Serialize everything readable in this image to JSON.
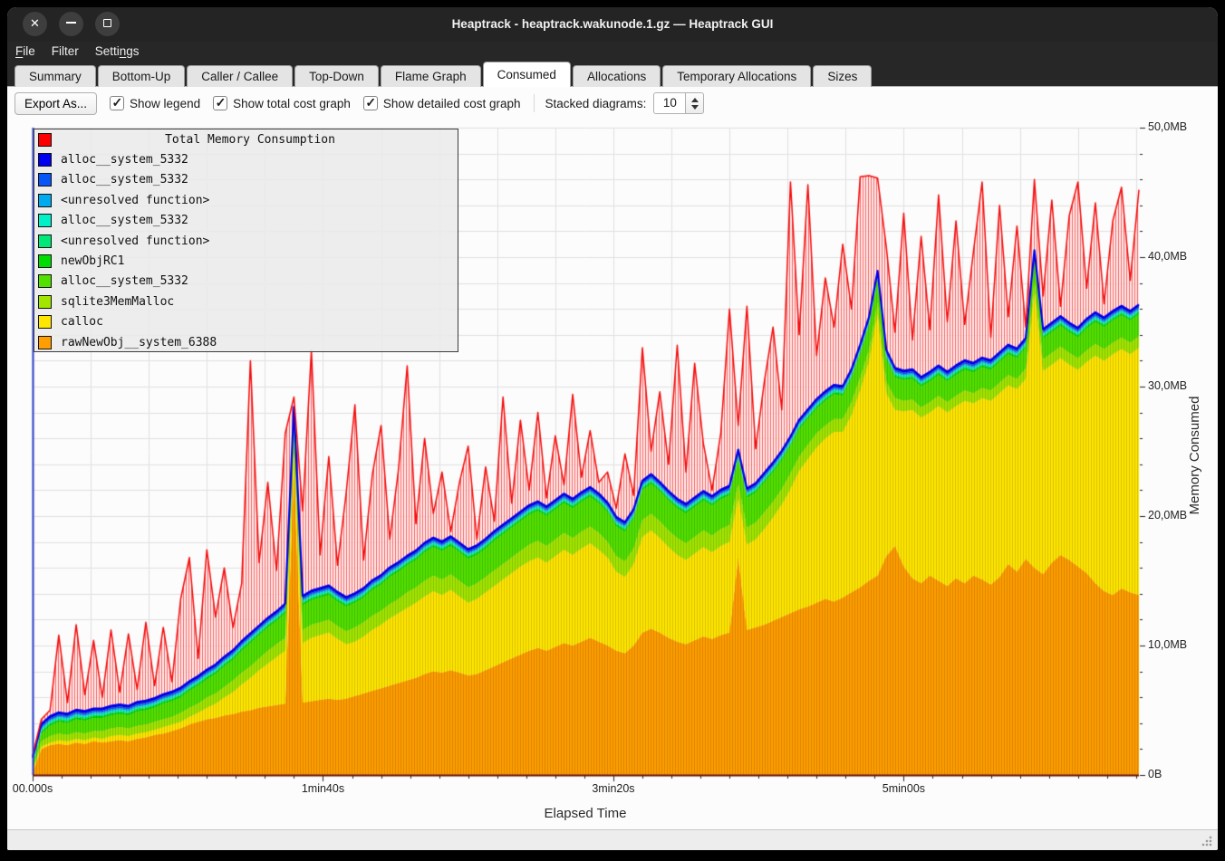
{
  "window": {
    "title": "Heaptrack - heaptrack.wakunode.1.gz — Heaptrack GUI"
  },
  "menu": {
    "items": [
      {
        "label": "File",
        "accel": 0
      },
      {
        "label": "Filter",
        "accel": -1
      },
      {
        "label": "Settings",
        "accel": 5
      }
    ]
  },
  "tabs": {
    "active": "Consumed",
    "items": [
      {
        "label": "Summary"
      },
      {
        "label": "Bottom-Up"
      },
      {
        "label": "Caller / Callee"
      },
      {
        "label": "Top-Down"
      },
      {
        "label": "Flame Graph"
      },
      {
        "label": "Consumed"
      },
      {
        "label": "Allocations"
      },
      {
        "label": "Temporary Allocations"
      },
      {
        "label": "Sizes"
      }
    ]
  },
  "toolbar": {
    "export_label": "Export As...",
    "checkboxes": [
      {
        "label": "Show legend",
        "checked": true
      },
      {
        "label": "Show total cost graph",
        "checked": true
      },
      {
        "label": "Show detailed cost graph",
        "checked": true
      }
    ],
    "stacked_label": "Stacked diagrams:",
    "stacked_value": "10"
  },
  "legend": {
    "items": [
      {
        "label": "Total Memory Consumption",
        "color": "#ff0000",
        "title": true
      },
      {
        "label": "alloc__system_5332",
        "color": "#0000ee"
      },
      {
        "label": "alloc__system_5332",
        "color": "#0855f5"
      },
      {
        "label": "<unresolved function>",
        "color": "#00aaee"
      },
      {
        "label": "alloc__system_5332",
        "color": "#00f0c8"
      },
      {
        "label": "<unresolved function>",
        "color": "#00e878"
      },
      {
        "label": "newObjRC1",
        "color": "#00dc00"
      },
      {
        "label": "alloc__system_5332",
        "color": "#52e000"
      },
      {
        "label": "sqlite3MemMalloc",
        "color": "#a2e600"
      },
      {
        "label": "calloc",
        "color": "#ffe600"
      },
      {
        "label": "rawNewObj__system_6388",
        "color": "#ff9e00"
      }
    ]
  },
  "chart_data": {
    "type": "area",
    "title": "Total Memory Consumption",
    "xlabel": "Elapsed Time",
    "ylabel": "Memory Consumed",
    "xlim": [
      0,
      381
    ],
    "ylim": [
      0,
      50
    ],
    "x_step_seconds": 3,
    "grid": {
      "x_interval_s": 20,
      "y_interval_mb": 2
    },
    "x_axis": {
      "ticks": [
        {
          "t": 0,
          "label": "00.000s"
        },
        {
          "t": 100,
          "label": "1min40s"
        },
        {
          "t": 200,
          "label": "3min20s"
        },
        {
          "t": 300,
          "label": "5min00s"
        }
      ],
      "minor_every_s": 10,
      "axis_color": "#6b1212"
    },
    "y_axis": {
      "ticks": [
        {
          "mb": 0,
          "label": "0B"
        },
        {
          "mb": 10,
          "label": "10,0MB"
        },
        {
          "mb": 20,
          "label": "20,0MB"
        },
        {
          "mb": 30,
          "label": "30,0MB"
        },
        {
          "mb": 40,
          "label": "40,0MB"
        },
        {
          "mb": 50,
          "label": "50,0MB"
        }
      ],
      "minor_every_mb": 2,
      "axis_color": "#2a3bc8"
    },
    "total_series": {
      "name": "Total Memory Consumption",
      "color": "#f30b0b",
      "values": [
        1.5,
        4.3,
        5.0,
        10.8,
        5.6,
        11.6,
        6.2,
        10.4,
        6.0,
        11.2,
        6.4,
        10.9,
        6.6,
        11.8,
        6.9,
        11.4,
        7.2,
        13.6,
        16.8,
        9.0,
        17.4,
        12.2,
        16.0,
        11.4,
        14.8,
        32.0,
        16.4,
        22.6,
        15.8,
        26.4,
        29.2,
        20.4,
        32.8,
        17.0,
        24.6,
        16.2,
        21.8,
        28.6,
        16.6,
        23.2,
        27.0,
        18.2,
        23.6,
        31.6,
        19.4,
        26.0,
        20.2,
        23.4,
        18.8,
        22.6,
        25.4,
        18.2,
        23.8,
        19.6,
        29.2,
        21.0,
        27.4,
        22.0,
        28.0,
        21.4,
        26.2,
        22.4,
        29.4,
        23.0,
        26.6,
        22.6,
        23.4,
        20.6,
        24.8,
        21.6,
        33.0,
        25.0,
        29.6,
        24.0,
        33.2,
        23.4,
        31.8,
        25.6,
        22.0,
        26.4,
        36.0,
        27.0,
        36.2,
        25.2,
        30.4,
        34.6,
        28.2,
        45.8,
        34.0,
        45.6,
        32.4,
        38.4,
        34.6,
        41.0,
        36.0,
        46.2,
        46.3,
        46.1,
        40.8,
        34.2,
        43.4,
        33.6,
        41.6,
        34.4,
        44.8,
        35.0,
        42.8,
        34.8,
        40.4,
        45.8,
        33.8,
        44.0,
        35.4,
        42.4,
        34.6,
        46.0,
        37.0,
        44.4,
        36.2,
        43.2,
        45.8,
        37.6,
        44.2,
        36.4,
        42.8,
        45.4,
        38.2,
        45.2
      ]
    },
    "stacked_series": [
      {
        "name": "rawNewObj__system_6388",
        "color": "#ff9e00",
        "values": [
          0.2,
          2.0,
          2.3,
          2.4,
          2.3,
          2.5,
          2.4,
          2.6,
          2.5,
          2.6,
          2.7,
          2.6,
          2.8,
          2.9,
          3.1,
          3.2,
          3.4,
          3.6,
          3.9,
          4.1,
          4.3,
          4.4,
          4.6,
          4.7,
          4.9,
          5.0,
          5.2,
          5.3,
          5.4,
          5.5,
          23.5,
          5.6,
          5.7,
          5.8,
          5.9,
          5.8,
          5.9,
          6.1,
          6.3,
          6.5,
          6.7,
          6.9,
          7.1,
          7.3,
          7.5,
          7.8,
          8.0,
          7.9,
          8.1,
          7.9,
          7.7,
          7.8,
          8.1,
          8.4,
          8.7,
          9.0,
          9.3,
          9.6,
          9.8,
          9.6,
          9.9,
          10.2,
          10.0,
          10.3,
          10.6,
          10.3,
          10.0,
          9.6,
          9.4,
          10.0,
          11.0,
          11.3,
          11.0,
          10.6,
          10.3,
          10.1,
          10.4,
          10.7,
          10.5,
          10.8,
          11.0,
          16.8,
          11.2,
          11.4,
          11.6,
          11.9,
          12.2,
          12.5,
          12.8,
          13.0,
          13.3,
          13.6,
          13.4,
          13.7,
          14.1,
          14.5,
          15.0,
          15.4,
          16.9,
          17.7,
          16.1,
          15.2,
          14.8,
          15.4,
          15.0,
          14.6,
          15.2,
          14.8,
          15.4,
          15.1,
          14.7,
          15.3,
          16.3,
          15.7,
          16.7,
          16.0,
          15.5,
          16.4,
          17.0,
          16.6,
          16.1,
          15.6,
          14.8,
          14.2,
          13.9,
          14.4,
          14.1,
          13.9
        ]
      },
      {
        "name": "calloc",
        "color": "#ffe600",
        "values": [
          0.1,
          0.2,
          0.2,
          0.3,
          0.3,
          0.3,
          0.3,
          0.3,
          0.3,
          0.4,
          0.4,
          0.4,
          0.4,
          0.4,
          0.4,
          0.5,
          0.5,
          0.5,
          0.6,
          0.7,
          0.9,
          1.1,
          1.4,
          1.7,
          2.1,
          2.5,
          2.9,
          3.3,
          3.7,
          4.1,
          1.3,
          4.6,
          4.9,
          5.0,
          5.1,
          4.7,
          4.2,
          4.2,
          4.4,
          4.7,
          4.9,
          5.2,
          5.4,
          5.6,
          5.8,
          6.0,
          6.2,
          6.0,
          6.2,
          5.9,
          5.6,
          5.8,
          6.0,
          6.2,
          6.4,
          6.6,
          6.8,
          6.9,
          7.0,
          6.8,
          7.0,
          7.2,
          7.0,
          7.2,
          7.3,
          7.1,
          6.8,
          6.1,
          5.9,
          6.3,
          7.4,
          7.6,
          7.3,
          7.0,
          6.7,
          6.5,
          6.7,
          6.9,
          6.7,
          6.9,
          7.0,
          4.6,
          6.6,
          6.8,
          7.4,
          8.0,
          8.7,
          9.6,
          10.7,
          11.4,
          12.0,
          12.4,
          13.1,
          12.8,
          13.7,
          15.2,
          16.9,
          20.2,
          12.6,
          10.5,
          12.0,
          13.0,
          12.8,
          12.6,
          13.5,
          13.4,
          13.3,
          14.1,
          13.3,
          14.0,
          14.2,
          14.2,
          13.8,
          14.1,
          13.9,
          21.4,
          15.7,
          15.3,
          15.2,
          15.1,
          15.2,
          16.3,
          17.6,
          17.8,
          18.6,
          18.5,
          18.4,
          19.1
        ]
      },
      {
        "name": "sqlite3MemMalloc",
        "color": "#a2e600",
        "values": [
          0.1,
          0.4,
          0.5,
          0.5,
          0.5,
          0.5,
          0.5,
          0.5,
          0.6,
          0.6,
          0.6,
          0.6,
          0.6,
          0.6,
          0.6,
          0.6,
          0.6,
          0.7,
          0.7,
          0.7,
          0.8,
          0.8,
          0.8,
          0.9,
          0.9,
          0.9,
          0.9,
          1.0,
          1.0,
          1.0,
          1.0,
          1.0,
          1.0,
          1.0,
          1.0,
          1.0,
          1.0,
          1.1,
          1.1,
          1.1,
          1.1,
          1.1,
          1.1,
          1.2,
          1.2,
          1.2,
          1.2,
          1.2,
          1.2,
          1.2,
          1.2,
          1.2,
          1.2,
          1.2,
          1.2,
          1.2,
          1.2,
          1.3,
          1.3,
          1.3,
          1.3,
          1.3,
          1.3,
          1.3,
          1.3,
          1.3,
          1.2,
          1.2,
          1.2,
          1.2,
          1.3,
          1.3,
          1.3,
          1.3,
          1.3,
          1.3,
          1.3,
          1.3,
          1.3,
          1.3,
          1.3,
          1.1,
          1.3,
          1.3,
          1.3,
          1.2,
          1.2,
          1.2,
          1.1,
          1.1,
          1.1,
          1.0,
          1.0,
          1.0,
          1.0,
          1.0,
          0.9,
          0.9,
          0.9,
          0.9,
          0.8,
          0.8,
          0.8,
          0.8,
          0.8,
          0.8,
          0.8,
          0.8,
          0.8,
          0.8,
          0.8,
          0.8,
          0.8,
          0.8,
          0.8,
          0.8,
          0.9,
          0.9,
          0.9,
          0.9,
          0.9,
          0.9,
          0.9,
          0.9,
          0.9,
          0.9,
          0.9,
          0.9
        ]
      },
      {
        "name": "alloc__system_5332",
        "color": "#52e000",
        "values": [
          0.2,
          0.6,
          0.8,
          0.9,
          0.9,
          1.0,
          1.0,
          1.0,
          1.0,
          1.0,
          1.0,
          1.0,
          1.1,
          1.1,
          1.1,
          1.2,
          1.2,
          1.2,
          1.3,
          1.4,
          1.4,
          1.5,
          1.6,
          1.6,
          1.7,
          1.8,
          1.8,
          1.8,
          1.8,
          1.9,
          1.9,
          1.9,
          1.9,
          1.9,
          1.9,
          1.9,
          1.9,
          1.9,
          1.9,
          2.0,
          2.0,
          2.1,
          2.1,
          2.1,
          2.1,
          2.2,
          2.2,
          2.2,
          2.2,
          2.2,
          2.2,
          2.2,
          2.2,
          2.3,
          2.3,
          2.3,
          2.3,
          2.3,
          2.3,
          2.3,
          2.3,
          2.3,
          2.3,
          2.3,
          2.3,
          2.3,
          2.3,
          2.3,
          2.3,
          2.3,
          2.3,
          2.3,
          2.3,
          2.3,
          2.3,
          2.3,
          2.3,
          2.3,
          2.3,
          2.3,
          2.3,
          1.9,
          2.3,
          2.3,
          2.3,
          2.3,
          2.2,
          2.1,
          2.1,
          2.0,
          1.9,
          1.9,
          1.9,
          1.8,
          1.8,
          1.8,
          1.8,
          1.7,
          1.7,
          1.6,
          1.6,
          1.6,
          1.6,
          1.6,
          1.6,
          1.6,
          1.6,
          1.6,
          1.6,
          1.6,
          1.6,
          1.6,
          1.6,
          1.6,
          1.6,
          1.6,
          1.6,
          1.6,
          1.6,
          1.6,
          1.6,
          1.7,
          1.7,
          1.7,
          1.7,
          1.7,
          1.7,
          1.7
        ]
      },
      {
        "name": "newObjRC1",
        "color": "#00dc00",
        "const": 0.15
      },
      {
        "name": "<unresolved function>",
        "color": "#00e878",
        "const": 0.1
      },
      {
        "name": "alloc__system_5332",
        "color": "#00f0c8",
        "const": 0.12
      },
      {
        "name": "<unresolved function>",
        "color": "#00aaee",
        "const": 0.1
      },
      {
        "name": "alloc__system_5332",
        "color": "#0855f5",
        "const": 0.12
      },
      {
        "name": "alloc__system_5332",
        "color": "#0000ee",
        "const": 0.15
      }
    ],
    "stack_top_line_color": "#0000e8",
    "legend_position": "top-left"
  }
}
